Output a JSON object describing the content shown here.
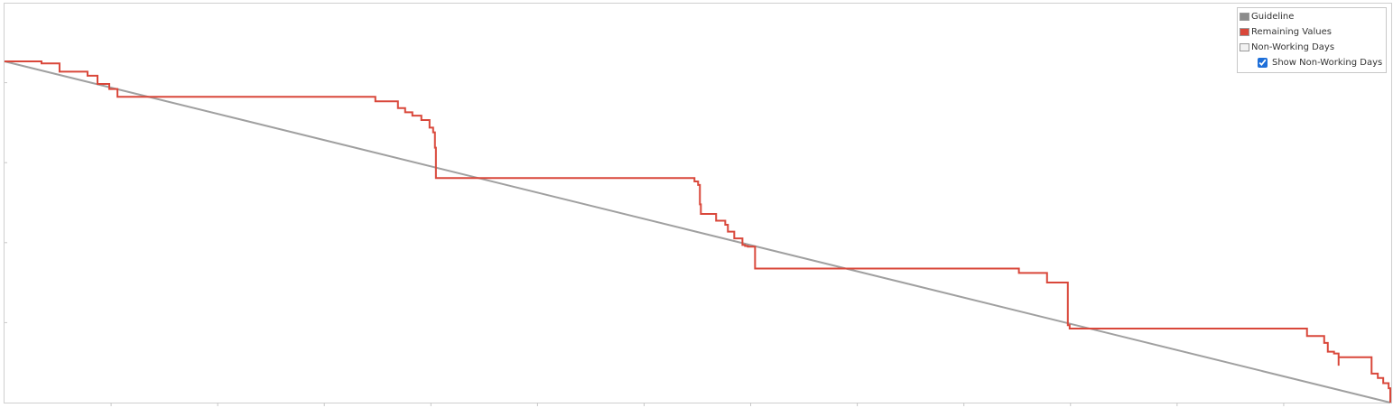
{
  "chart_data": {
    "type": "line",
    "title": "",
    "xlabel": "",
    "ylabel": "",
    "x_ticks": 13,
    "y_ticks": 5,
    "xlim": [
      0,
      1000
    ],
    "ylim": [
      0,
      100
    ],
    "grid": false,
    "legend_position": "top-right",
    "series": [
      {
        "name": "Guideline",
        "color": "#a0a0a0",
        "x": [
          0,
          1000
        ],
        "y": [
          100,
          0
        ]
      },
      {
        "name": "Remaining Values",
        "color": "#d9473a",
        "step": true,
        "x": [
          0,
          26.7,
          39.7,
          59.9,
          67.1,
          75.6,
          81.5,
          224.2,
          267.6,
          283.9,
          289.1,
          294.3,
          300.8,
          306.7,
          309.3,
          310.6,
          311.3,
          452.4,
          497.9,
          500.5,
          501.8,
          502.5,
          503.1,
          513.5,
          520.1,
          522.0,
          526.6,
          532.5,
          534.4,
          536.4,
          541.6,
          714.1,
          732.0,
          752.3,
          767.3,
          767.3,
          768.6,
          932.8,
          939.9,
          952.3,
          954.9,
          959.4,
          962.7,
          962.7,
          962.7,
          981.2,
          986.5,
          991.0,
          994.9,
          998.8,
          1000
        ],
        "y": [
          100,
          99.4,
          97.0,
          95.8,
          93.4,
          91.9,
          89.6,
          89.6,
          88.3,
          86.3,
          85.1,
          84.1,
          82.8,
          80.6,
          79.2,
          74.7,
          65.8,
          65.8,
          64.8,
          63.8,
          58.1,
          55.3,
          55.3,
          53.3,
          52.1,
          50.1,
          48.1,
          46.2,
          45.9,
          45.7,
          39.3,
          39.3,
          38.0,
          35.2,
          33.4,
          22.7,
          21.7,
          21.7,
          19.5,
          17.5,
          14.9,
          14.4,
          14.4,
          10.8,
          13.3,
          13.3,
          8.5,
          7.2,
          5.7,
          4.2,
          0
        ]
      }
    ]
  },
  "legend": {
    "items": [
      {
        "label": "Guideline",
        "color": "#8c8c8c"
      },
      {
        "label": "Remaining Values",
        "color": "#d9473a"
      },
      {
        "label": "Non-Working Days",
        "color": "#f2f2f2"
      }
    ],
    "toggle_label": "Show Non-Working Days",
    "toggle_checked": true
  }
}
